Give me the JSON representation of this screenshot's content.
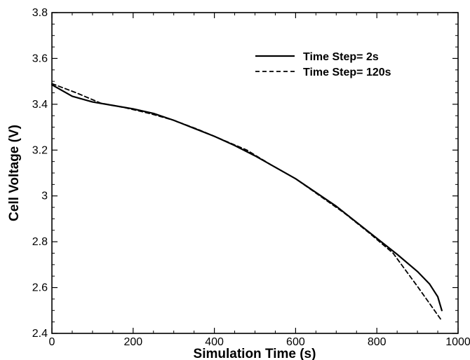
{
  "chart_data": {
    "type": "line",
    "title": "",
    "xlabel": "Simulation Time (s)",
    "ylabel": "Cell Voltage (V)",
    "xlim": [
      0,
      1000
    ],
    "ylim": [
      2.4,
      3.8
    ],
    "x_ticks": [
      0,
      200,
      400,
      600,
      800,
      1000
    ],
    "x_tick_labels": [
      "0",
      "200",
      "400",
      "600",
      "800",
      "1000"
    ],
    "y_ticks": [
      2.4,
      2.6,
      2.8,
      3.0,
      3.2,
      3.4,
      3.6,
      3.8
    ],
    "y_tick_labels": [
      "2.4",
      "2.6",
      "2.8",
      "3",
      "3.2",
      "3.4",
      "3.6",
      "3.8"
    ],
    "grid": false,
    "legend_position": "top-right",
    "series": [
      {
        "name": "Time Step= 2s",
        "line_style": "solid",
        "color": "#000000",
        "x": [
          0,
          50,
          100,
          150,
          200,
          250,
          300,
          350,
          400,
          450,
          500,
          550,
          600,
          650,
          700,
          750,
          800,
          850,
          900,
          930,
          950,
          960
        ],
        "y": [
          3.485,
          3.435,
          3.41,
          3.395,
          3.38,
          3.36,
          3.33,
          3.295,
          3.26,
          3.22,
          3.175,
          3.125,
          3.075,
          3.015,
          2.955,
          2.885,
          2.815,
          2.745,
          2.67,
          2.615,
          2.56,
          2.5
        ]
      },
      {
        "name": "Time Step= 120s",
        "line_style": "dashed",
        "color": "#000000",
        "x": [
          0,
          60,
          120,
          180,
          240,
          300,
          360,
          420,
          480,
          540,
          600,
          660,
          720,
          780,
          840,
          900,
          960
        ],
        "y": [
          3.49,
          3.45,
          3.405,
          3.385,
          3.36,
          3.33,
          3.29,
          3.245,
          3.2,
          3.135,
          3.075,
          3.0,
          2.925,
          2.84,
          2.75,
          2.605,
          2.455
        ]
      }
    ]
  }
}
